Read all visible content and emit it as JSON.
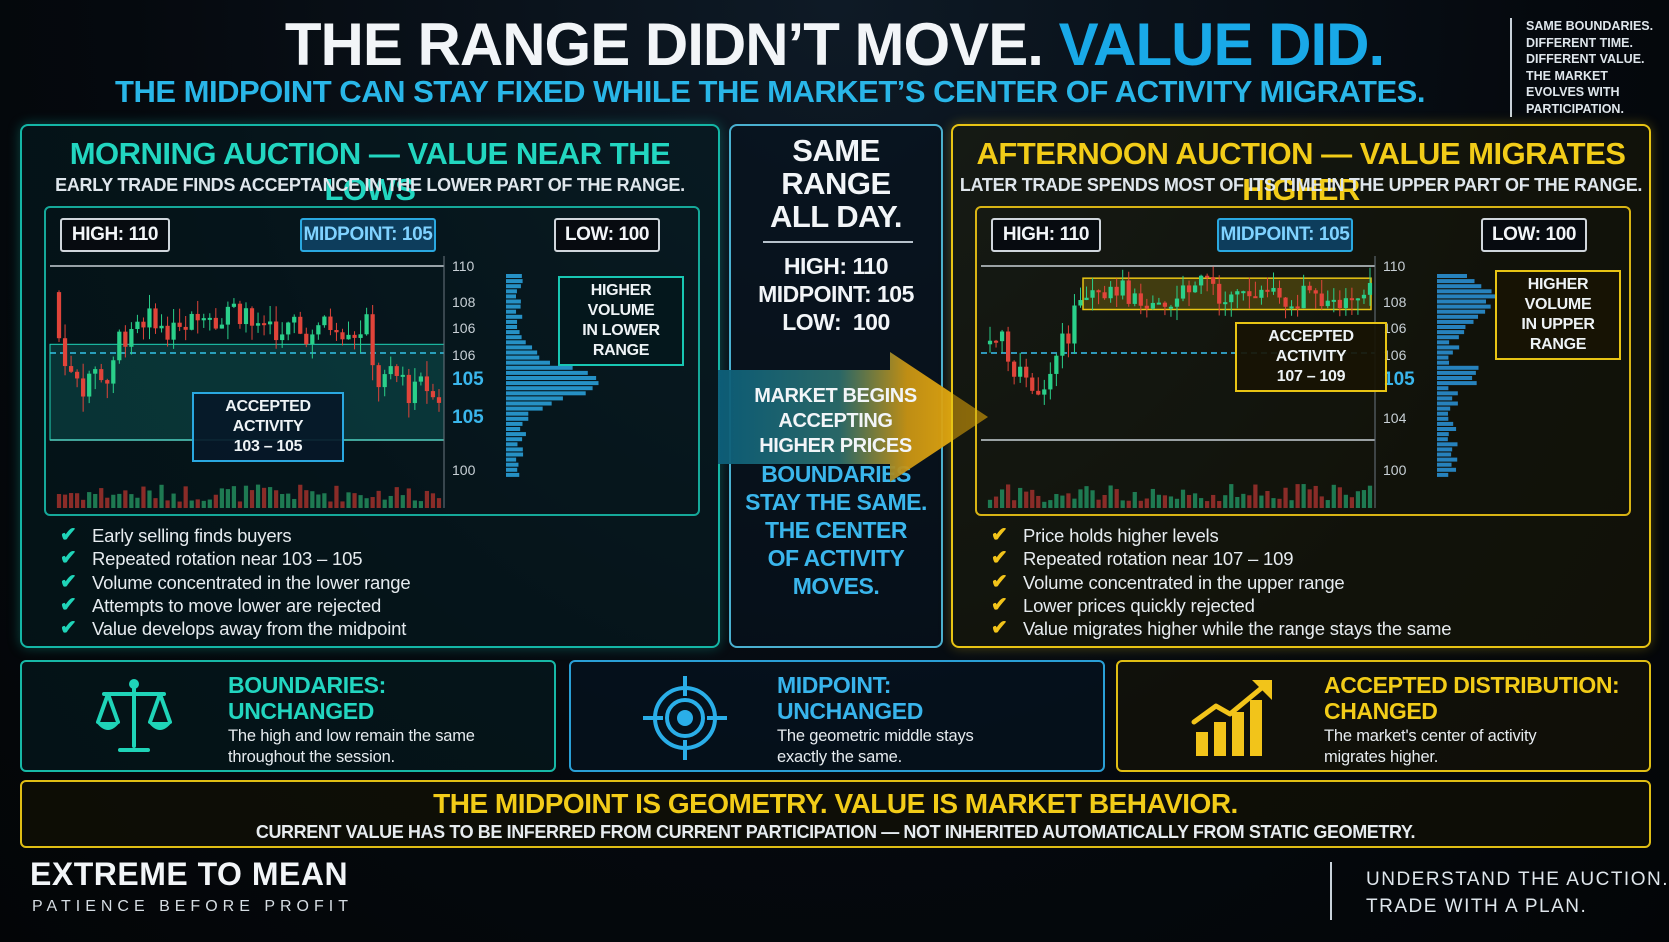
{
  "header": {
    "title_main": "THE RANGE DIDN’T MOVE. ",
    "title_accent": "VALUE DID.",
    "subtitle": "THE MIDPOINT CAN STAY FIXED WHILE THE MARKET’S CENTER OF ACTIVITY MIGRATES.",
    "side_note": [
      "SAME BOUNDARIES.",
      "DIFFERENT TIME.",
      "DIFFERENT VALUE.",
      "THE MARKET",
      "EVOLVES WITH",
      "PARTICIPATION."
    ]
  },
  "morning": {
    "title": "MORNING AUCTION — VALUE NEAR THE LOWS",
    "subtitle": "EARLY TRADE FINDS ACCEPTANCE IN THE LOWER PART OF THE RANGE.",
    "high_label": "HIGH: 110",
    "mid_label": "MIDPOINT: 105",
    "low_label": "LOW: 100",
    "axis_labels": [
      "110",
      "108",
      "106",
      "106",
      "105",
      "105",
      "100"
    ],
    "axis_extra": "0.0",
    "volume_callout": [
      "HIGHER VOLUME",
      "IN LOWER RANGE"
    ],
    "activity_callout": [
      "ACCEPTED ACTIVITY",
      "103 – 105"
    ],
    "bullets": [
      "Early selling finds buyers",
      "Repeated rotation near 103 – 105",
      "Volume concentrated in the lower range",
      "Attempts to move lower are rejected",
      "Value develops away from the midpoint"
    ],
    "accent": "#1fd4b8"
  },
  "center": {
    "same_range": [
      "SAME",
      "RANGE",
      "ALL DAY."
    ],
    "levels": [
      "HIGH: 110",
      "MIDPOINT: 105",
      "LOW:  100"
    ],
    "arrow_text": [
      "MARKET BEGINS",
      "ACCEPTING",
      "HIGHER PRICES"
    ],
    "boundaries_text": [
      "BOUNDARIES",
      "STAY THE SAME.",
      "THE CENTER",
      "OF ACTIVITY",
      "MOVES."
    ]
  },
  "afternoon": {
    "title": "AFTERNOON AUCTION — VALUE MIGRATES HIGHER",
    "subtitle": "LATER TRADE SPENDS MOST OF ITS TIME IN THE UPPER PART OF THE RANGE.",
    "high_label": "HIGH: 110",
    "mid_label": "MIDPOINT: 105",
    "low_label": "LOW: 100",
    "axis_labels": [
      "110",
      "108",
      "106",
      "106",
      "105",
      "104",
      "100"
    ],
    "axis_extra": "0.0",
    "volume_callout": [
      "HIGHER VOLUME",
      "IN UPPER RANGE"
    ],
    "activity_callout": [
      "ACCEPTED ACTIVITY",
      "107 – 109"
    ],
    "bullets": [
      "Price holds higher levels",
      "Repeated rotation near 107 – 109",
      "Volume concentrated in the upper range",
      "Lower prices quickly rejected",
      "Value migrates higher while the range stays the same"
    ],
    "accent": "#f2c41a"
  },
  "cards": [
    {
      "title": [
        "BOUNDARIES:",
        "UNCHANGED"
      ],
      "desc": [
        "The high and low remain the same",
        "throughout the session."
      ],
      "icon": "scales-icon"
    },
    {
      "title": [
        "MIDPOINT:",
        "UNCHANGED"
      ],
      "desc": [
        "The geometric middle stays",
        "exactly the same."
      ],
      "icon": "target-icon"
    },
    {
      "title": [
        "ACCEPTED DISTRIBUTION:",
        "CHANGED"
      ],
      "desc": [
        "The market's center of activity",
        "migrates higher."
      ],
      "icon": "growth-chart-icon"
    }
  ],
  "banner": {
    "title": "THE MIDPOINT IS GEOMETRY. VALUE IS MARKET BEHAVIOR.",
    "subtitle": "CURRENT VALUE HAS TO BE INFERRED FROM CURRENT PARTICIPATION — NOT INHERITED AUTOMATICALLY FROM STATIC GEOMETRY."
  },
  "footer": {
    "brand": "EXTREME TO MEAN",
    "tagline": "PATIENCE BEFORE PROFIT",
    "right": [
      "UNDERSTAND THE AUCTION.",
      "TRADE WITH A PLAN."
    ]
  },
  "colors": {
    "teal": "#1fd4b8",
    "blue": "#19a9e8",
    "gold": "#f2c41a",
    "red": "#e0443a",
    "green": "#2ad08a"
  }
}
